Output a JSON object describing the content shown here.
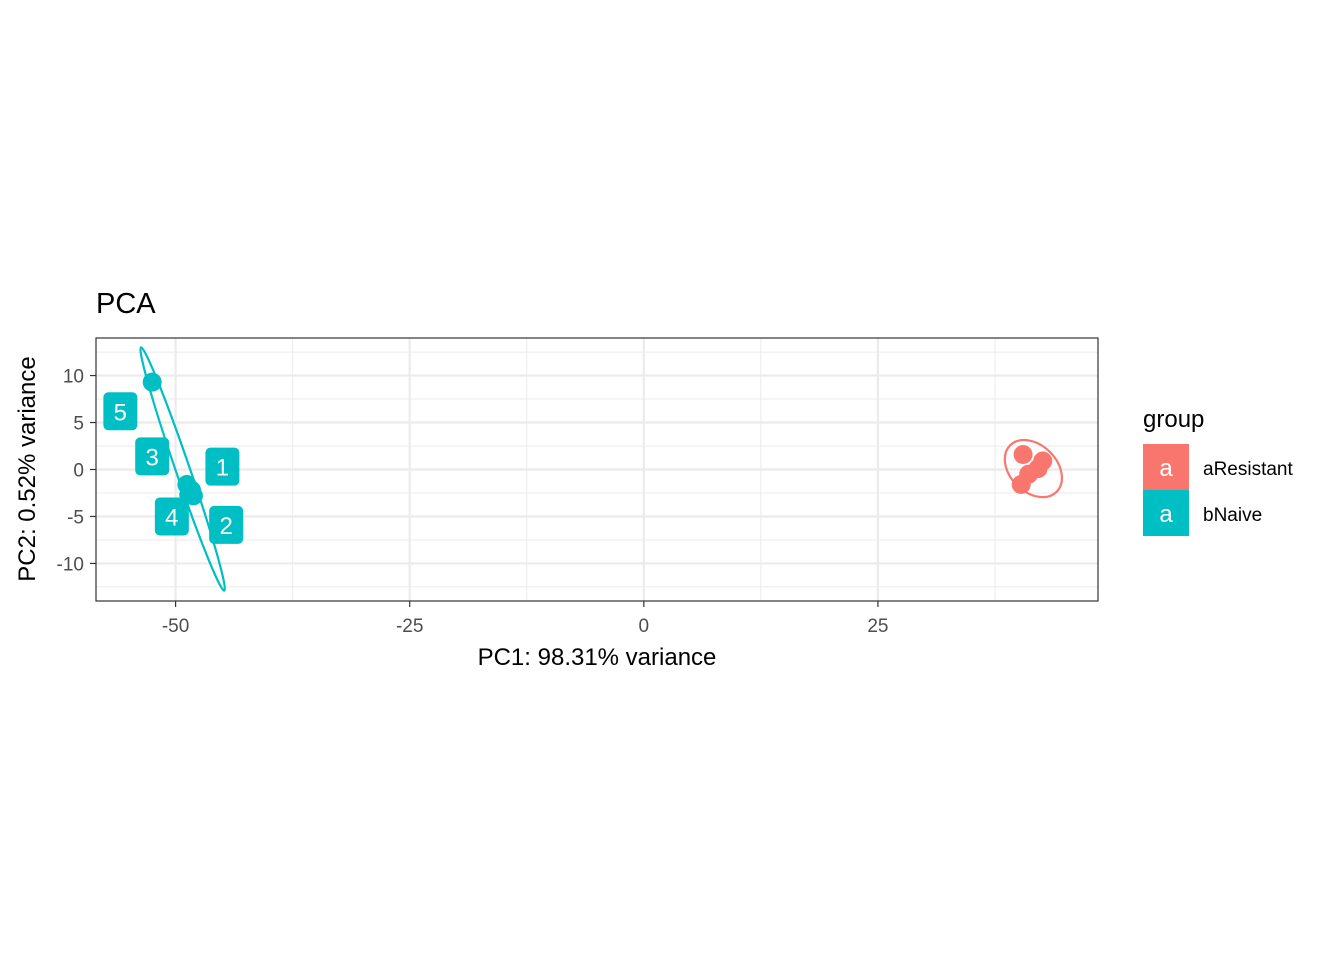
{
  "chart_data": {
    "type": "scatter",
    "title": "PCA",
    "xlabel": "PC1: 98.31% variance",
    "ylabel": "PC2: 0.52% variance",
    "xlim": [
      -58.5,
      48.5
    ],
    "ylim": [
      -14,
      14
    ],
    "x_ticks": [
      -50,
      -25,
      0,
      25
    ],
    "x_tick_labels": [
      "-50",
      "-25",
      "0",
      "25"
    ],
    "y_ticks": [
      -10,
      -5,
      0,
      5,
      10
    ],
    "y_tick_labels": [
      "-10",
      "-5",
      "0",
      "5",
      "10"
    ],
    "grid": true,
    "legend": {
      "title": "group",
      "position": "right",
      "key_glyph": "a",
      "entries": [
        "aResistant",
        "bNaive"
      ]
    },
    "colors": {
      "aResistant": "#F8766D",
      "bNaive": "#00BFC4"
    },
    "series": [
      {
        "name": "aResistant",
        "color": "#F8766D",
        "points": [
          {
            "x": 40.5,
            "y": 1.6
          },
          {
            "x": 42.6,
            "y": 0.9
          },
          {
            "x": 42.1,
            "y": 0.1
          },
          {
            "x": 41.1,
            "y": -0.5
          },
          {
            "x": 40.3,
            "y": -1.6
          }
        ],
        "ellipse": {
          "cx": 41.6,
          "cy": 0.1,
          "rx": 2.5,
          "ry": 3.5,
          "angle_deg": 45
        }
      },
      {
        "name": "bNaive",
        "color": "#00BFC4",
        "points": [
          {
            "x": -48.8,
            "y": -1.6,
            "label": "1"
          },
          {
            "x": -48.1,
            "y": -2.8,
            "label": "2"
          },
          {
            "x": -48.3,
            "y": -2.2,
            "label": "3"
          },
          {
            "x": -48.6,
            "y": -2.7,
            "label": "4"
          },
          {
            "x": -52.5,
            "y": 9.3,
            "label": "5"
          }
        ],
        "label_positions": [
          {
            "label": "1",
            "x": -45.0,
            "y": 0.3
          },
          {
            "label": "2",
            "x": -44.6,
            "y": -5.9
          },
          {
            "label": "3",
            "x": -52.5,
            "y": 1.4
          },
          {
            "label": "4",
            "x": -50.4,
            "y": -5.0
          },
          {
            "label": "5",
            "x": -55.9,
            "y": 6.2
          }
        ],
        "ellipse_axis": {
          "from": {
            "x": -53.7,
            "y": 13.0
          },
          "to": {
            "x": -44.8,
            "y": -12.9
          },
          "half_width": 0.75
        }
      }
    ]
  }
}
